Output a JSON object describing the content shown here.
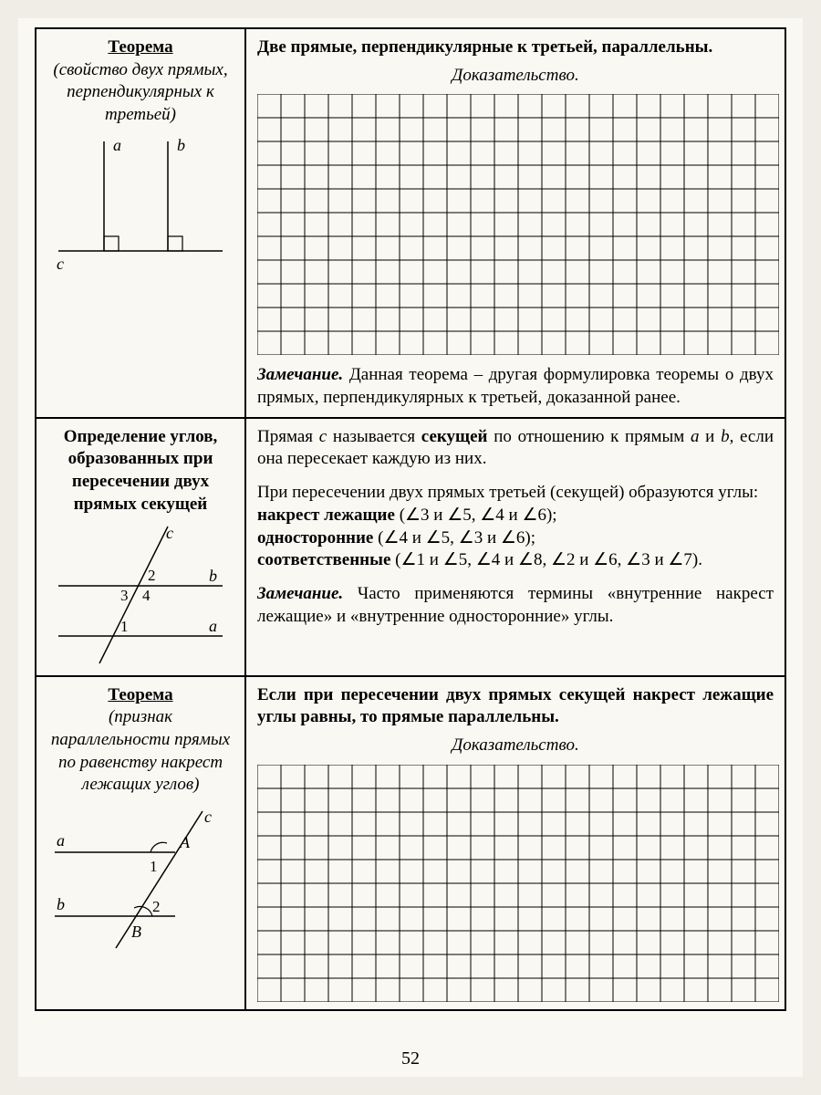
{
  "row1": {
    "left_title": "Теорема",
    "left_sub": "(свойство двух прямых, перпен­дикулярных к третьей)",
    "diagram": {
      "a": "a",
      "b": "b",
      "c": "c"
    },
    "statement": "Две прямые, перпендикулярные к третьей, параллельны.",
    "proof_label": "Доказательство.",
    "note_lead": "Замечание.",
    "note_text": " Данная теорема – другая формулировка теоремы о двух прямых, перпендикулярных к третьей, доказанной ранее."
  },
  "row2": {
    "left_title": "Определение углов, образован­ных при пересечении двух прямых секущей",
    "diagram": {
      "c": "c",
      "b": "b",
      "a": "a",
      "n1": "1",
      "n2": "2",
      "n3": "3",
      "n4": "4"
    },
    "p1_pre": "Прямая ",
    "p1_c": "c",
    "p1_mid": " называется ",
    "p1_kw": "секущей",
    "p1_post": " по отношению к пря­мым ",
    "p1_a": "a",
    "p1_and": " и ",
    "p1_b": "b",
    "p1_end": ", если она пересекает каждую из них.",
    "p2": "При пересечении двух прямых третьей (секущей) обра­зуются углы:",
    "l1_kw": "накрест лежащие",
    "l1_rest": " (∠3 и ∠5, ∠4 и ∠6);",
    "l2_kw": "односторонние",
    "l2_rest": " (∠4 и ∠5, ∠3 и ∠6);",
    "l3_kw": "соответственные",
    "l3_rest": " (∠1 и ∠5, ∠4 и ∠8, ∠2 и ∠6, ∠3 и ∠7).",
    "note_lead": "Замечание.",
    "note_text": " Часто применяются термины «внутренние накрест лежащие» и «внутренние односторонние» углы."
  },
  "row3": {
    "left_title": "Теорема",
    "left_sub": "(признак параллельности прямых по равен­ству накрест лежащих углов)",
    "diagram": {
      "a": "a",
      "b": "b",
      "c": "c",
      "A": "A",
      "B": "B",
      "n1": "1",
      "n2": "2"
    },
    "statement": "Если при пересечении двух прямых секущей накрест лежащие углы равны, то прямые параллельны.",
    "proof_label": "Доказательство."
  },
  "grids": {
    "cell": 26,
    "grid1": {
      "cols": 22,
      "rows": 11
    },
    "grid2": {
      "cols": 22,
      "rows": 10
    },
    "line_color": "#000000",
    "line_width": 1
  },
  "colors": {
    "page_bg": "#faf8f2",
    "border": "#000000",
    "text": "#000000"
  },
  "typography": {
    "body_fontsize": 19,
    "font_family": "Times New Roman"
  },
  "page_number": "52"
}
